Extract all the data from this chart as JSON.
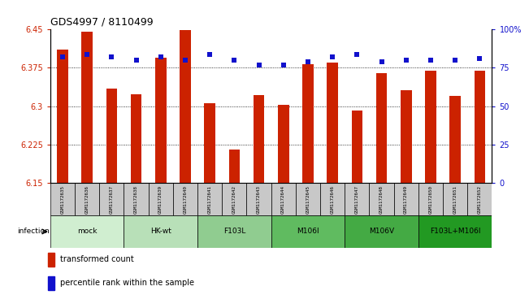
{
  "title": "GDS4997 / 8110499",
  "samples": [
    "GSM1172635",
    "GSM1172636",
    "GSM1172637",
    "GSM1172638",
    "GSM1172639",
    "GSM1172640",
    "GSM1172641",
    "GSM1172642",
    "GSM1172643",
    "GSM1172644",
    "GSM1172645",
    "GSM1172646",
    "GSM1172647",
    "GSM1172648",
    "GSM1172649",
    "GSM1172650",
    "GSM1172651",
    "GSM1172652"
  ],
  "transformed_counts": [
    6.41,
    6.445,
    6.335,
    6.323,
    6.395,
    6.449,
    6.306,
    6.215,
    6.322,
    6.303,
    6.382,
    6.385,
    6.292,
    6.365,
    6.332,
    6.37,
    6.32,
    6.37
  ],
  "percentile_ranks": [
    82,
    84,
    82,
    80,
    82,
    80,
    84,
    80,
    77,
    77,
    79,
    82,
    84,
    79,
    80,
    80,
    80,
    81
  ],
  "groups": [
    {
      "label": "mock",
      "start": 0,
      "end": 3,
      "color": "#cceecc"
    },
    {
      "label": "HK-wt",
      "start": 3,
      "end": 6,
      "color": "#aaddaa"
    },
    {
      "label": "F103L",
      "start": 6,
      "end": 9,
      "color": "#88cc88"
    },
    {
      "label": "M106I",
      "start": 9,
      "end": 12,
      "color": "#55bb55"
    },
    {
      "label": "M106V",
      "start": 12,
      "end": 15,
      "color": "#33aa33"
    },
    {
      "label": "F103L+M106I",
      "start": 15,
      "end": 18,
      "color": "#119911"
    }
  ],
  "ylim_left": [
    6.15,
    6.45
  ],
  "ylim_right": [
    0,
    100
  ],
  "yticks_left": [
    6.15,
    6.225,
    6.3,
    6.375,
    6.45
  ],
  "ytick_labels_left": [
    "6.15",
    "6.225",
    "6.3",
    "6.375",
    "6.45"
  ],
  "yticks_right": [
    0,
    25,
    50,
    75,
    100
  ],
  "ytick_labels_right": [
    "0",
    "25",
    "50",
    "75",
    "100%"
  ],
  "bar_color": "#cc2200",
  "dot_color": "#1111cc",
  "infection_label": "infection",
  "legend_items": [
    {
      "label": "transformed count",
      "color": "#cc2200"
    },
    {
      "label": "percentile rank within the sample",
      "color": "#1111cc"
    }
  ]
}
